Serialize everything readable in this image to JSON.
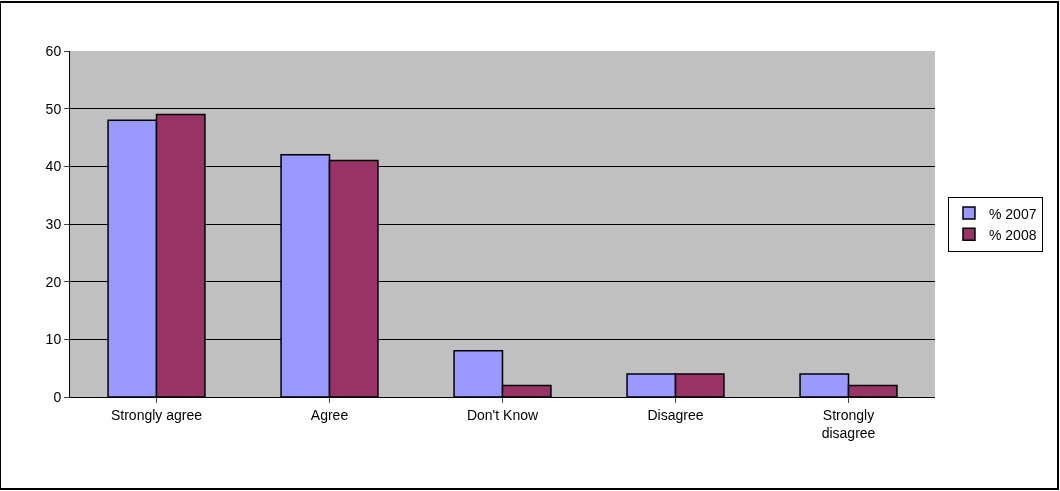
{
  "chart_data": {
    "type": "bar",
    "categories": [
      "Strongly agree",
      "Agree",
      "Don't Know",
      "Disagree",
      "Strongly disagree"
    ],
    "series": [
      {
        "name": "% 2007",
        "color": "#9999ff",
        "values": [
          48,
          42,
          8,
          4,
          4
        ]
      },
      {
        "name": "% 2008",
        "color": "#993366",
        "values": [
          49,
          41,
          2,
          4,
          2
        ]
      }
    ],
    "ylim": [
      0,
      60
    ],
    "yticks": [
      0,
      10,
      20,
      30,
      40,
      50,
      60
    ],
    "grid": "y",
    "legend": "right"
  }
}
